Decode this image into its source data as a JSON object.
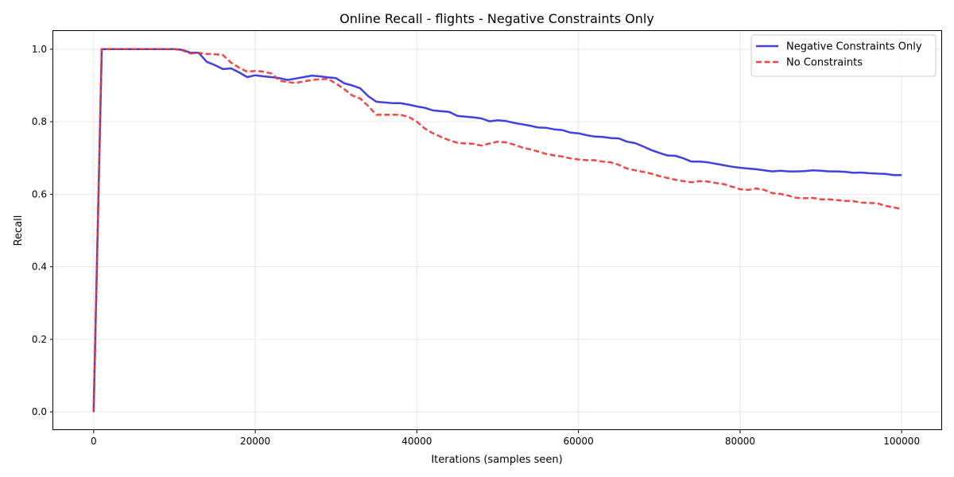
{
  "chart_data": {
    "type": "line",
    "title": "Online Recall - flights - Negative Constraints Only",
    "xlabel": "Iterations (samples seen)",
    "ylabel": "Recall",
    "xlim": [
      -5000,
      105000
    ],
    "ylim": [
      -0.05,
      1.05
    ],
    "xticks": [
      0,
      20000,
      40000,
      60000,
      80000,
      100000
    ],
    "xtick_labels": [
      "0",
      "20000",
      "40000",
      "60000",
      "80000",
      "100000"
    ],
    "yticks": [
      0.0,
      0.2,
      0.4,
      0.6,
      0.8,
      1.0
    ],
    "ytick_labels": [
      "0.0",
      "0.2",
      "0.4",
      "0.6",
      "0.8",
      "1.0"
    ],
    "grid": true,
    "legend_position": "top-right",
    "series": [
      {
        "name": "Negative Constraints Only",
        "color": "#2b2be0",
        "style": "solid",
        "x": [
          0,
          1000,
          2000,
          4000,
          6000,
          8000,
          10000,
          11000,
          12000,
          13000,
          14000,
          15000,
          16000,
          17000,
          18000,
          19000,
          20000,
          21000,
          22000,
          23000,
          24000,
          25000,
          26000,
          27000,
          28000,
          29000,
          30000,
          31000,
          32000,
          33000,
          34000,
          35000,
          36000,
          37000,
          38000,
          39000,
          40000,
          41000,
          42000,
          43000,
          44000,
          45000,
          46000,
          47000,
          48000,
          49000,
          50000,
          51000,
          52000,
          53000,
          54000,
          55000,
          56000,
          57000,
          58000,
          59000,
          60000,
          61000,
          62000,
          63000,
          64000,
          65000,
          66000,
          67000,
          68000,
          69000,
          70000,
          71000,
          72000,
          73000,
          74000,
          75000,
          76000,
          77000,
          78000,
          79000,
          80000,
          81000,
          82000,
          83000,
          84000,
          85000,
          86000,
          87000,
          88000,
          89000,
          90000,
          91000,
          92000,
          93000,
          94000,
          95000,
          96000,
          97000,
          98000,
          99000,
          100000
        ],
        "y": [
          0.0,
          1.0,
          1.0,
          1.0,
          1.0,
          1.0,
          1.0,
          0.998,
          0.99,
          0.99,
          0.965,
          0.956,
          0.945,
          0.947,
          0.936,
          0.923,
          0.928,
          0.925,
          0.923,
          0.92,
          0.915,
          0.919,
          0.923,
          0.927,
          0.925,
          0.922,
          0.92,
          0.906,
          0.9,
          0.892,
          0.87,
          0.855,
          0.853,
          0.851,
          0.851,
          0.847,
          0.842,
          0.838,
          0.831,
          0.829,
          0.827,
          0.816,
          0.814,
          0.812,
          0.809,
          0.801,
          0.804,
          0.802,
          0.797,
          0.793,
          0.789,
          0.784,
          0.783,
          0.779,
          0.777,
          0.77,
          0.768,
          0.763,
          0.759,
          0.758,
          0.755,
          0.754,
          0.745,
          0.741,
          0.732,
          0.722,
          0.714,
          0.707,
          0.706,
          0.699,
          0.69,
          0.69,
          0.688,
          0.684,
          0.68,
          0.676,
          0.673,
          0.671,
          0.669,
          0.666,
          0.663,
          0.665,
          0.663,
          0.663,
          0.664,
          0.666,
          0.665,
          0.663,
          0.663,
          0.662,
          0.659,
          0.66,
          0.658,
          0.657,
          0.656,
          0.653,
          0.653
        ]
      },
      {
        "name": "No Constraints",
        "color": "#ee3333",
        "style": "dashed",
        "x": [
          0,
          1000,
          2000,
          4000,
          6000,
          8000,
          10000,
          11000,
          12000,
          13000,
          14000,
          15000,
          16000,
          17000,
          18000,
          19000,
          20000,
          21000,
          22000,
          23000,
          24000,
          25000,
          26000,
          27000,
          28000,
          29000,
          30000,
          31000,
          32000,
          33000,
          34000,
          35000,
          36000,
          37000,
          38000,
          39000,
          40000,
          41000,
          42000,
          43000,
          44000,
          45000,
          46000,
          47000,
          48000,
          49000,
          50000,
          51000,
          52000,
          53000,
          54000,
          55000,
          56000,
          57000,
          58000,
          59000,
          60000,
          61000,
          62000,
          63000,
          64000,
          65000,
          66000,
          67000,
          68000,
          69000,
          70000,
          71000,
          72000,
          73000,
          74000,
          75000,
          76000,
          77000,
          78000,
          79000,
          80000,
          81000,
          82000,
          83000,
          84000,
          85000,
          86000,
          87000,
          88000,
          89000,
          90000,
          91000,
          92000,
          93000,
          94000,
          95000,
          96000,
          97000,
          98000,
          99000,
          100000
        ],
        "y": [
          0.0,
          1.0,
          1.0,
          1.0,
          1.0,
          1.0,
          1.0,
          0.997,
          0.988,
          0.99,
          0.987,
          0.986,
          0.984,
          0.963,
          0.949,
          0.938,
          0.94,
          0.938,
          0.933,
          0.913,
          0.909,
          0.907,
          0.911,
          0.915,
          0.917,
          0.918,
          0.905,
          0.89,
          0.872,
          0.864,
          0.843,
          0.819,
          0.819,
          0.819,
          0.819,
          0.813,
          0.8,
          0.781,
          0.768,
          0.758,
          0.749,
          0.742,
          0.74,
          0.739,
          0.734,
          0.74,
          0.745,
          0.743,
          0.737,
          0.729,
          0.724,
          0.718,
          0.711,
          0.707,
          0.704,
          0.699,
          0.696,
          0.694,
          0.694,
          0.69,
          0.688,
          0.681,
          0.671,
          0.666,
          0.662,
          0.657,
          0.65,
          0.645,
          0.64,
          0.636,
          0.633,
          0.636,
          0.635,
          0.631,
          0.628,
          0.621,
          0.614,
          0.612,
          0.616,
          0.612,
          0.603,
          0.601,
          0.596,
          0.59,
          0.589,
          0.59,
          0.586,
          0.586,
          0.584,
          0.582,
          0.581,
          0.577,
          0.576,
          0.575,
          0.568,
          0.564,
          0.559
        ]
      }
    ]
  }
}
